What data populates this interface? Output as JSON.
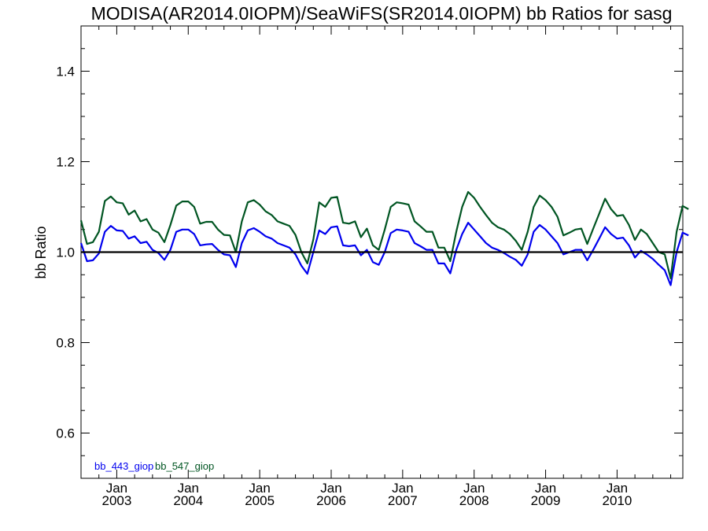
{
  "chart_data": {
    "type": "line",
    "title": "MODISA(AR2014.0IOPM)/SeaWiFS(SR2014.0IOPM)  bb Ratios for sasg",
    "ylabel": "bb Ratio",
    "xlabel": "",
    "xlim": [
      2002.5,
      2010.92
    ],
    "ylim": [
      0.5,
      1.5
    ],
    "yticks": [
      0.6,
      0.8,
      1.0,
      1.2,
      1.4
    ],
    "ytick_labels": [
      "0.6",
      "0.8",
      "1.0",
      "1.2",
      "1.4"
    ],
    "xticks": [
      2003,
      2004,
      2005,
      2006,
      2007,
      2008,
      2009,
      2010
    ],
    "xtick_month": "Jan",
    "xtick_years": [
      "2003",
      "2004",
      "2005",
      "2006",
      "2007",
      "2008",
      "2009",
      "2010"
    ],
    "reference_line": {
      "y": 1.0,
      "color": "#000000"
    },
    "x_start": 2002.5,
    "x_step": 0.08333,
    "series": [
      {
        "name": "bb_443_giop",
        "color": "#0000ee",
        "values": [
          1.02,
          0.98,
          0.982,
          0.997,
          1.045,
          1.058,
          1.048,
          1.047,
          1.03,
          1.035,
          1.02,
          1.023,
          1.005,
          0.998,
          0.983,
          1.005,
          1.045,
          1.05,
          1.05,
          1.04,
          1.015,
          1.017,
          1.018,
          1.005,
          0.995,
          0.993,
          0.967,
          1.02,
          1.048,
          1.053,
          1.045,
          1.035,
          1.03,
          1.02,
          1.015,
          1.01,
          0.995,
          0.97,
          0.952,
          1.0,
          1.048,
          1.04,
          1.055,
          1.057,
          1.015,
          1.013,
          1.015,
          0.993,
          1.005,
          0.978,
          0.972,
          1.0,
          1.042,
          1.05,
          1.048,
          1.045,
          1.02,
          1.013,
          1.005,
          1.005,
          0.975,
          0.975,
          0.953,
          1.005,
          1.04,
          1.065,
          1.05,
          1.035,
          1.02,
          1.01,
          1.005,
          0.998,
          0.99,
          0.983,
          0.97,
          0.995,
          1.045,
          1.06,
          1.05,
          1.035,
          1.02,
          0.995,
          1.0,
          1.005,
          1.005,
          0.982,
          1.005,
          1.03,
          1.055,
          1.04,
          1.03,
          1.032,
          1.015,
          0.988,
          1.003,
          0.995,
          0.985,
          0.972,
          0.96,
          0.927,
          1.0,
          1.043,
          1.037
        ]
      },
      {
        "name": "bb_547_giop",
        "color": "#005522",
        "values": [
          1.07,
          1.018,
          1.022,
          1.045,
          1.113,
          1.123,
          1.11,
          1.108,
          1.083,
          1.092,
          1.068,
          1.073,
          1.05,
          1.043,
          1.022,
          1.06,
          1.103,
          1.112,
          1.112,
          1.1,
          1.063,
          1.067,
          1.067,
          1.05,
          1.038,
          1.037,
          1.0,
          1.068,
          1.11,
          1.115,
          1.105,
          1.09,
          1.082,
          1.068,
          1.063,
          1.058,
          1.038,
          1.0,
          0.975,
          1.028,
          1.11,
          1.1,
          1.12,
          1.122,
          1.065,
          1.063,
          1.068,
          1.033,
          1.052,
          1.015,
          1.005,
          1.05,
          1.1,
          1.11,
          1.108,
          1.105,
          1.068,
          1.057,
          1.045,
          1.045,
          1.01,
          1.01,
          0.98,
          1.045,
          1.1,
          1.133,
          1.12,
          1.1,
          1.082,
          1.065,
          1.055,
          1.05,
          1.04,
          1.025,
          1.005,
          1.045,
          1.1,
          1.125,
          1.115,
          1.1,
          1.078,
          1.037,
          1.043,
          1.05,
          1.052,
          1.018,
          1.052,
          1.085,
          1.118,
          1.095,
          1.08,
          1.082,
          1.06,
          1.027,
          1.05,
          1.04,
          1.02,
          1.0,
          0.995,
          0.942,
          1.045,
          1.102,
          1.095
        ]
      }
    ],
    "legend_placement": "bottom-left",
    "grid": false
  }
}
